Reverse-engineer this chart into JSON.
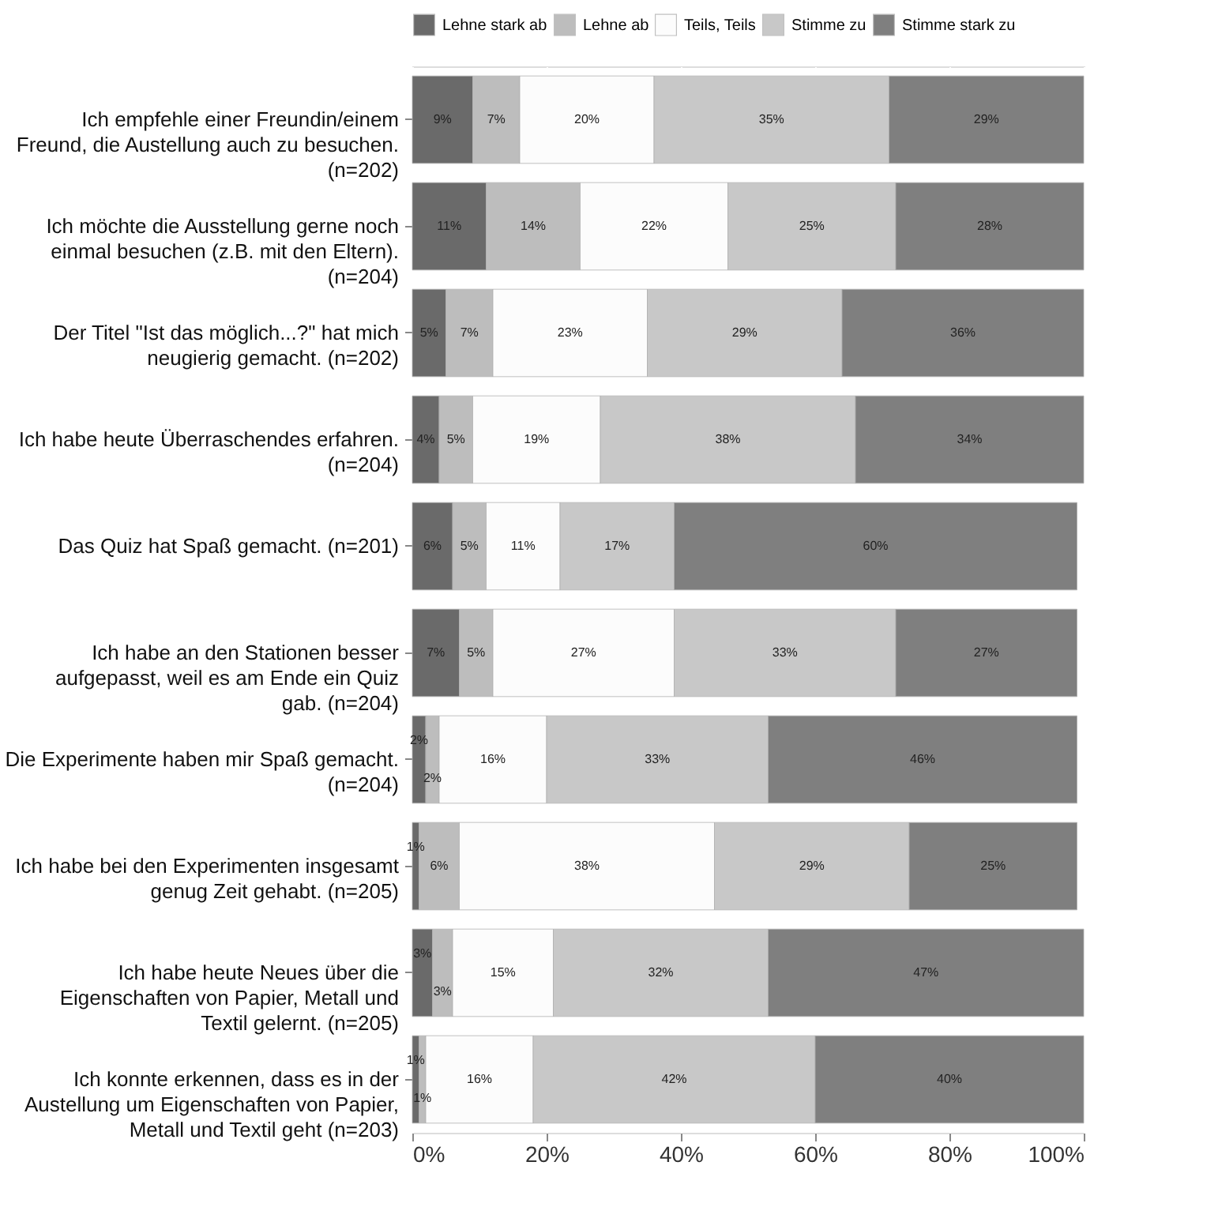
{
  "chart_data": {
    "type": "bar",
    "orientation": "horizontal",
    "stacked": true,
    "legend": "top",
    "grid": "x",
    "categories": [
      "Ich empfehle einer Freundin/einem\nFreund, die Austellung auch zu besuchen.\n(n=202)",
      "Ich möchte die Ausstellung gerne noch\neinmal besuchen (z.B. mit den Eltern).\n(n=204)",
      "Der Titel \"Ist das möglich...?\" hat mich\nneugierig gemacht. (n=202)",
      "Ich habe heute Überraschendes erfahren.\n(n=204)",
      "Das Quiz hat Spaß gemacht. (n=201)",
      "Ich habe an den Stationen besser\naufgepasst, weil es am Ende ein Quiz\ngab. (n=204)",
      "Die Experimente haben mir Spaß gemacht.\n(n=204)",
      "Ich habe bei den Experimenten insgesamt\ngenug Zeit gehabt. (n=205)",
      "Ich habe heute Neues über die\nEigenschaften von Papier, Metall und\nTextil gelernt. (n=205)",
      "Ich konnte erkennen, dass es in der\nAustellung um Eigenschaften von Papier,\nMetall und Textil geht (n=203)"
    ],
    "xlim": [
      0,
      100
    ],
    "xticks": [
      {
        "value": 0,
        "label": "0%"
      },
      {
        "value": 20,
        "label": "20%"
      },
      {
        "value": 40,
        "label": "40%"
      },
      {
        "value": 60,
        "label": "60%"
      },
      {
        "value": 80,
        "label": "80%"
      },
      {
        "value": 100,
        "label": "100%"
      }
    ],
    "series": [
      {
        "name": "Lehne stark ab",
        "color": "#6a6a6a",
        "values": [
          9,
          11,
          5,
          4,
          6,
          7,
          2,
          1,
          3,
          1
        ],
        "value_labels": [
          "9%",
          "11%",
          "5%",
          "4%",
          "6%",
          "7%",
          "2%",
          "1%",
          "3%",
          "1%"
        ]
      },
      {
        "name": "Lehne ab",
        "color": "#bdbdbd",
        "values": [
          7,
          14,
          7,
          5,
          5,
          5,
          2,
          6,
          3,
          1
        ],
        "value_labels": [
          "7%",
          "14%",
          "7%",
          "5%",
          "5%",
          "5%",
          "2%",
          "6%",
          "3%",
          "1%"
        ]
      },
      {
        "name": "Teils, Teils",
        "color": "#fcfcfc",
        "values": [
          20,
          22,
          23,
          19,
          11,
          27,
          16,
          38,
          15,
          16
        ],
        "value_labels": [
          "20%",
          "22%",
          "23%",
          "19%",
          "11%",
          "27%",
          "16%",
          "38%",
          "15%",
          "16%"
        ]
      },
      {
        "name": "Stimme zu",
        "color": "#c8c8c8",
        "values": [
          35,
          25,
          29,
          38,
          17,
          33,
          33,
          29,
          32,
          42
        ],
        "value_labels": [
          "35%",
          "25%",
          "29%",
          "38%",
          "17%",
          "33%",
          "33%",
          "29%",
          "32%",
          "42%"
        ]
      },
      {
        "name": "Stimme stark zu",
        "color": "#7f7f7f",
        "values": [
          29,
          28,
          36,
          34,
          60,
          27,
          46,
          25,
          47,
          40
        ],
        "value_labels": [
          "29%",
          "28%",
          "36%",
          "34%",
          "60%",
          "27%",
          "46%",
          "25%",
          "47%",
          "40%"
        ]
      }
    ]
  }
}
